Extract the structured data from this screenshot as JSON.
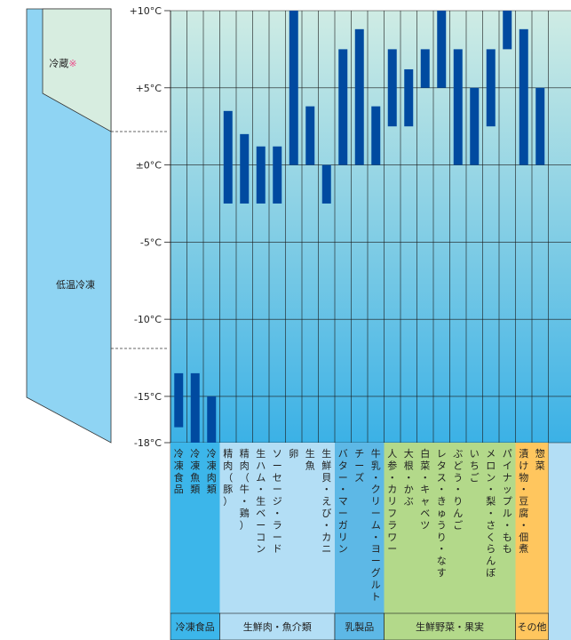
{
  "zones": {
    "refrigeration": {
      "label": "冷蔵",
      "mark": "※"
    },
    "low_temp_freezing": {
      "label": "低温冷凍"
    }
  },
  "colors": {
    "refrigeration_zone": "#d7ede0",
    "freezing_zone": "#8fd4f3",
    "freezing_zone_light": "#bfe6f7",
    "plot_top": "#cfece4",
    "plot_bottom": "#3bb1e6",
    "bar": "#004aa0",
    "grid": "#1a1a1a",
    "group_frozen": "#3cb6ea",
    "group_meat_fish": "#b3def5",
    "group_dairy": "#5db8e6",
    "group_produce": "#b3d98a",
    "group_other": "#ffc65e",
    "mark": "#ec4a8a"
  },
  "chart_data": {
    "type": "bar",
    "subtype": "floating-range",
    "y_axis": {
      "min": -18,
      "max": 10,
      "ticks": [
        {
          "value": 10,
          "label": "+10°C"
        },
        {
          "value": 5,
          "label": "+5°C"
        },
        {
          "value": 0,
          "label": "±0°C"
        },
        {
          "value": -5,
          "label": "-5°C"
        },
        {
          "value": -10,
          "label": "-10°C"
        },
        {
          "value": -15,
          "label": "-15°C"
        },
        {
          "value": -18,
          "label": "-18°C"
        }
      ],
      "grid": true
    },
    "categories": [
      {
        "label": "冷凍食品",
        "low": -17,
        "high": -13.5,
        "group": 0
      },
      {
        "label": "冷凍魚類",
        "low": -18,
        "high": -13.5,
        "group": 0
      },
      {
        "label": "冷凍肉類",
        "low": -18,
        "high": -15,
        "group": 0
      },
      {
        "label": "精肉（豚）",
        "low": -2.5,
        "high": 3.5,
        "group": 1
      },
      {
        "label": "精肉（牛・鶏）",
        "low": -2.5,
        "high": 2.0,
        "group": 1
      },
      {
        "label": "生ハム・生ベーコン",
        "low": -2.5,
        "high": 1.2,
        "group": 1
      },
      {
        "label": "ソーセージ・ラード",
        "low": -2.5,
        "high": 1.2,
        "group": 1
      },
      {
        "label": "卵",
        "low": 0,
        "high": 10,
        "group": 1
      },
      {
        "label": "生魚",
        "low": 0,
        "high": 3.8,
        "group": 1
      },
      {
        "label": "生鮮貝・えび・カニ",
        "low": -2.5,
        "high": 0,
        "group": 1
      },
      {
        "label": "バター・マーガリン",
        "low": 0,
        "high": 7.5,
        "group": 2
      },
      {
        "label": "チーズ",
        "low": 0,
        "high": 8.8,
        "group": 2
      },
      {
        "label": "牛乳・クリーム・ヨーグルト",
        "low": 0,
        "high": 3.8,
        "group": 2
      },
      {
        "label": "人参・カリフラワー",
        "low": 2.5,
        "high": 7.5,
        "group": 3
      },
      {
        "label": "大根・かぶ",
        "low": 2.5,
        "high": 6.2,
        "group": 3
      },
      {
        "label": "白菜・キャベツ",
        "low": 5,
        "high": 7.5,
        "group": 3
      },
      {
        "label": "レタス・きゅうり・なす",
        "low": 5,
        "high": 10,
        "group": 3
      },
      {
        "label": "ぶどう・りんご",
        "low": 0,
        "high": 7.5,
        "group": 3
      },
      {
        "label": "いちご",
        "low": 0,
        "high": 5,
        "group": 3
      },
      {
        "label": "メロン・梨・さくらんぼ",
        "low": 2.5,
        "high": 7.5,
        "group": 3
      },
      {
        "label": "パイナップル・もも",
        "low": 7.5,
        "high": 10,
        "group": 3
      },
      {
        "label": "漬け物・豆腐・佃煮",
        "low": 0,
        "high": 8.8,
        "group": 4
      },
      {
        "label": "惣菜",
        "low": 0,
        "high": 5,
        "group": 4
      }
    ],
    "groups": [
      {
        "label": "冷凍食品",
        "color_key": "group_frozen"
      },
      {
        "label": "生鮮肉・魚介類",
        "color_key": "group_meat_fish"
      },
      {
        "label": "乳製品",
        "color_key": "group_dairy"
      },
      {
        "label": "生鮮野菜・果実",
        "color_key": "group_produce"
      },
      {
        "label": "その他",
        "color_key": "group_other"
      }
    ]
  }
}
